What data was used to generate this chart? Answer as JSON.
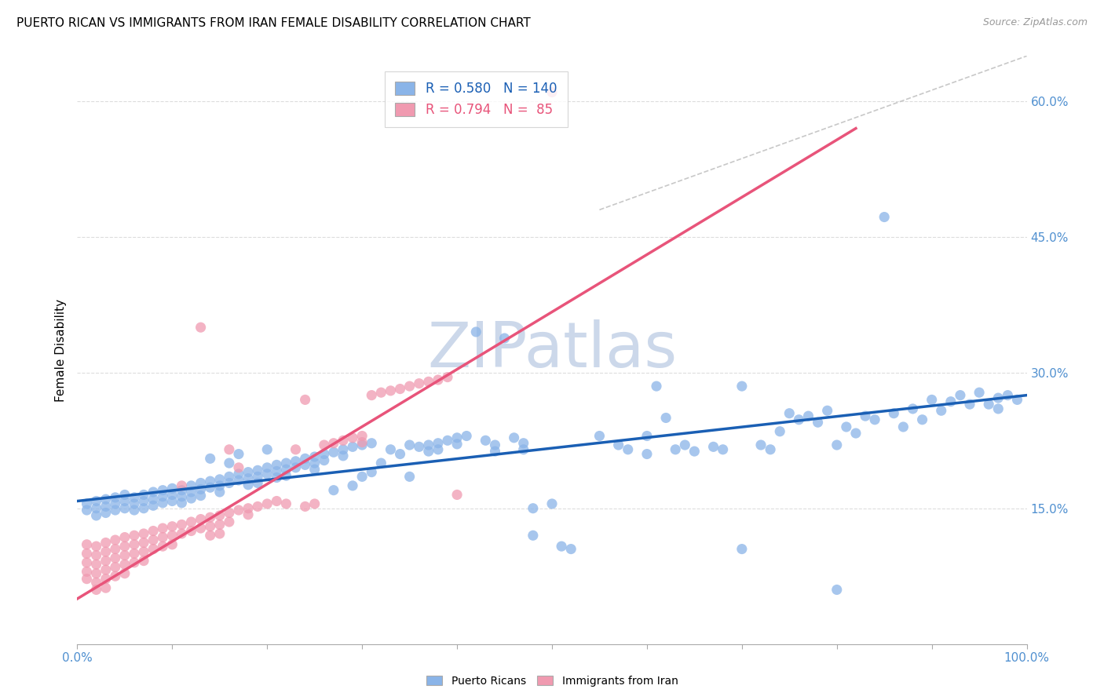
{
  "title": "PUERTO RICAN VS IMMIGRANTS FROM IRAN FEMALE DISABILITY CORRELATION CHART",
  "source": "Source: ZipAtlas.com",
  "ylabel": "Female Disability",
  "xlim": [
    0,
    1
  ],
  "ylim": [
    0,
    0.65
  ],
  "xticklabels": [
    "0.0%",
    "",
    "",
    "",
    "",
    "",
    "",
    "",
    "",
    "",
    "100.0%"
  ],
  "yticks": [
    0.15,
    0.3,
    0.45,
    0.6
  ],
  "yticklabels": [
    "15.0%",
    "30.0%",
    "45.0%",
    "60.0%"
  ],
  "blue_R": "0.580",
  "blue_N": "140",
  "pink_R": "0.794",
  "pink_N": "85",
  "blue_color": "#8ab4e8",
  "pink_color": "#f09ab0",
  "blue_line_color": "#1a5fb4",
  "pink_line_color": "#e8547a",
  "trendline_color": "#c8c8c8",
  "background_color": "#ffffff",
  "grid_color": "#dddddd",
  "blue_trendline": [
    [
      0.0,
      0.158
    ],
    [
      1.0,
      0.275
    ]
  ],
  "pink_trendline": [
    [
      0.0,
      0.05
    ],
    [
      0.82,
      0.57
    ]
  ],
  "diagonal_trendline": [
    [
      0.55,
      0.48
    ],
    [
      1.0,
      0.65
    ]
  ],
  "watermark": "ZIPatlas",
  "watermark_color": "#ccd8ea",
  "title_fontsize": 11,
  "legend_fontsize": 12,
  "tick_fontsize": 11,
  "ylabel_fontsize": 11,
  "blue_scatter": [
    [
      0.01,
      0.155
    ],
    [
      0.01,
      0.148
    ],
    [
      0.02,
      0.158
    ],
    [
      0.02,
      0.15
    ],
    [
      0.02,
      0.142
    ],
    [
      0.03,
      0.16
    ],
    [
      0.03,
      0.152
    ],
    [
      0.03,
      0.145
    ],
    [
      0.04,
      0.162
    ],
    [
      0.04,
      0.155
    ],
    [
      0.04,
      0.148
    ],
    [
      0.05,
      0.165
    ],
    [
      0.05,
      0.158
    ],
    [
      0.05,
      0.15
    ],
    [
      0.06,
      0.162
    ],
    [
      0.06,
      0.155
    ],
    [
      0.06,
      0.148
    ],
    [
      0.07,
      0.165
    ],
    [
      0.07,
      0.158
    ],
    [
      0.07,
      0.15
    ],
    [
      0.08,
      0.168
    ],
    [
      0.08,
      0.16
    ],
    [
      0.08,
      0.153
    ],
    [
      0.09,
      0.17
    ],
    [
      0.09,
      0.163
    ],
    [
      0.09,
      0.156
    ],
    [
      0.1,
      0.172
    ],
    [
      0.1,
      0.165
    ],
    [
      0.1,
      0.158
    ],
    [
      0.11,
      0.17
    ],
    [
      0.11,
      0.163
    ],
    [
      0.11,
      0.156
    ],
    [
      0.12,
      0.175
    ],
    [
      0.12,
      0.168
    ],
    [
      0.12,
      0.161
    ],
    [
      0.13,
      0.178
    ],
    [
      0.13,
      0.171
    ],
    [
      0.13,
      0.164
    ],
    [
      0.14,
      0.18
    ],
    [
      0.14,
      0.173
    ],
    [
      0.14,
      0.205
    ],
    [
      0.15,
      0.182
    ],
    [
      0.15,
      0.175
    ],
    [
      0.15,
      0.168
    ],
    [
      0.16,
      0.185
    ],
    [
      0.16,
      0.178
    ],
    [
      0.16,
      0.2
    ],
    [
      0.17,
      0.188
    ],
    [
      0.17,
      0.181
    ],
    [
      0.17,
      0.21
    ],
    [
      0.18,
      0.19
    ],
    [
      0.18,
      0.183
    ],
    [
      0.18,
      0.176
    ],
    [
      0.19,
      0.192
    ],
    [
      0.19,
      0.185
    ],
    [
      0.19,
      0.178
    ],
    [
      0.2,
      0.195
    ],
    [
      0.2,
      0.188
    ],
    [
      0.2,
      0.215
    ],
    [
      0.21,
      0.198
    ],
    [
      0.21,
      0.191
    ],
    [
      0.21,
      0.184
    ],
    [
      0.22,
      0.2
    ],
    [
      0.22,
      0.193
    ],
    [
      0.22,
      0.186
    ],
    [
      0.23,
      0.202
    ],
    [
      0.23,
      0.195
    ],
    [
      0.24,
      0.205
    ],
    [
      0.24,
      0.198
    ],
    [
      0.25,
      0.207
    ],
    [
      0.25,
      0.2
    ],
    [
      0.25,
      0.193
    ],
    [
      0.26,
      0.21
    ],
    [
      0.26,
      0.203
    ],
    [
      0.27,
      0.212
    ],
    [
      0.27,
      0.17
    ],
    [
      0.28,
      0.215
    ],
    [
      0.28,
      0.208
    ],
    [
      0.29,
      0.218
    ],
    [
      0.29,
      0.175
    ],
    [
      0.3,
      0.22
    ],
    [
      0.3,
      0.185
    ],
    [
      0.31,
      0.222
    ],
    [
      0.31,
      0.19
    ],
    [
      0.32,
      0.2
    ],
    [
      0.33,
      0.215
    ],
    [
      0.34,
      0.21
    ],
    [
      0.35,
      0.185
    ],
    [
      0.35,
      0.22
    ],
    [
      0.36,
      0.218
    ],
    [
      0.37,
      0.22
    ],
    [
      0.37,
      0.213
    ],
    [
      0.38,
      0.222
    ],
    [
      0.38,
      0.215
    ],
    [
      0.39,
      0.225
    ],
    [
      0.4,
      0.228
    ],
    [
      0.4,
      0.221
    ],
    [
      0.41,
      0.23
    ],
    [
      0.42,
      0.345
    ],
    [
      0.43,
      0.225
    ],
    [
      0.44,
      0.22
    ],
    [
      0.44,
      0.213
    ],
    [
      0.45,
      0.338
    ],
    [
      0.46,
      0.228
    ],
    [
      0.47,
      0.222
    ],
    [
      0.47,
      0.215
    ],
    [
      0.48,
      0.15
    ],
    [
      0.48,
      0.12
    ],
    [
      0.5,
      0.155
    ],
    [
      0.51,
      0.108
    ],
    [
      0.52,
      0.105
    ],
    [
      0.55,
      0.23
    ],
    [
      0.57,
      0.22
    ],
    [
      0.58,
      0.215
    ],
    [
      0.6,
      0.23
    ],
    [
      0.6,
      0.21
    ],
    [
      0.61,
      0.285
    ],
    [
      0.62,
      0.25
    ],
    [
      0.63,
      0.215
    ],
    [
      0.64,
      0.22
    ],
    [
      0.65,
      0.213
    ],
    [
      0.67,
      0.218
    ],
    [
      0.68,
      0.215
    ],
    [
      0.7,
      0.285
    ],
    [
      0.7,
      0.105
    ],
    [
      0.72,
      0.22
    ],
    [
      0.73,
      0.215
    ],
    [
      0.74,
      0.235
    ],
    [
      0.75,
      0.255
    ],
    [
      0.76,
      0.248
    ],
    [
      0.77,
      0.252
    ],
    [
      0.78,
      0.245
    ],
    [
      0.79,
      0.258
    ],
    [
      0.8,
      0.22
    ],
    [
      0.8,
      0.06
    ],
    [
      0.81,
      0.24
    ],
    [
      0.82,
      0.233
    ],
    [
      0.83,
      0.252
    ],
    [
      0.84,
      0.248
    ],
    [
      0.85,
      0.472
    ],
    [
      0.86,
      0.255
    ],
    [
      0.87,
      0.24
    ],
    [
      0.88,
      0.26
    ],
    [
      0.89,
      0.248
    ],
    [
      0.9,
      0.27
    ],
    [
      0.91,
      0.258
    ],
    [
      0.92,
      0.268
    ],
    [
      0.93,
      0.275
    ],
    [
      0.94,
      0.265
    ],
    [
      0.95,
      0.278
    ],
    [
      0.96,
      0.265
    ],
    [
      0.97,
      0.272
    ],
    [
      0.97,
      0.26
    ],
    [
      0.98,
      0.275
    ],
    [
      0.99,
      0.27
    ]
  ],
  "pink_scatter": [
    [
      0.01,
      0.11
    ],
    [
      0.01,
      0.1
    ],
    [
      0.01,
      0.09
    ],
    [
      0.01,
      0.08
    ],
    [
      0.01,
      0.072
    ],
    [
      0.02,
      0.108
    ],
    [
      0.02,
      0.098
    ],
    [
      0.02,
      0.088
    ],
    [
      0.02,
      0.078
    ],
    [
      0.02,
      0.068
    ],
    [
      0.02,
      0.06
    ],
    [
      0.03,
      0.112
    ],
    [
      0.03,
      0.102
    ],
    [
      0.03,
      0.092
    ],
    [
      0.03,
      0.082
    ],
    [
      0.03,
      0.072
    ],
    [
      0.03,
      0.062
    ],
    [
      0.04,
      0.115
    ],
    [
      0.04,
      0.105
    ],
    [
      0.04,
      0.095
    ],
    [
      0.04,
      0.085
    ],
    [
      0.04,
      0.075
    ],
    [
      0.05,
      0.118
    ],
    [
      0.05,
      0.108
    ],
    [
      0.05,
      0.098
    ],
    [
      0.05,
      0.088
    ],
    [
      0.05,
      0.078
    ],
    [
      0.06,
      0.12
    ],
    [
      0.06,
      0.11
    ],
    [
      0.06,
      0.1
    ],
    [
      0.06,
      0.09
    ],
    [
      0.07,
      0.122
    ],
    [
      0.07,
      0.112
    ],
    [
      0.07,
      0.102
    ],
    [
      0.07,
      0.092
    ],
    [
      0.08,
      0.125
    ],
    [
      0.08,
      0.115
    ],
    [
      0.08,
      0.105
    ],
    [
      0.09,
      0.128
    ],
    [
      0.09,
      0.118
    ],
    [
      0.09,
      0.108
    ],
    [
      0.1,
      0.13
    ],
    [
      0.1,
      0.12
    ],
    [
      0.1,
      0.11
    ],
    [
      0.11,
      0.132
    ],
    [
      0.11,
      0.122
    ],
    [
      0.11,
      0.175
    ],
    [
      0.12,
      0.135
    ],
    [
      0.12,
      0.125
    ],
    [
      0.13,
      0.138
    ],
    [
      0.13,
      0.128
    ],
    [
      0.13,
      0.35
    ],
    [
      0.14,
      0.14
    ],
    [
      0.14,
      0.13
    ],
    [
      0.14,
      0.12
    ],
    [
      0.15,
      0.142
    ],
    [
      0.15,
      0.132
    ],
    [
      0.15,
      0.122
    ],
    [
      0.16,
      0.145
    ],
    [
      0.16,
      0.135
    ],
    [
      0.16,
      0.215
    ],
    [
      0.17,
      0.148
    ],
    [
      0.17,
      0.195
    ],
    [
      0.18,
      0.15
    ],
    [
      0.18,
      0.143
    ],
    [
      0.19,
      0.152
    ],
    [
      0.2,
      0.155
    ],
    [
      0.21,
      0.158
    ],
    [
      0.22,
      0.155
    ],
    [
      0.23,
      0.215
    ],
    [
      0.24,
      0.152
    ],
    [
      0.24,
      0.27
    ],
    [
      0.25,
      0.155
    ],
    [
      0.26,
      0.22
    ],
    [
      0.27,
      0.222
    ],
    [
      0.28,
      0.225
    ],
    [
      0.29,
      0.228
    ],
    [
      0.3,
      0.23
    ],
    [
      0.3,
      0.223
    ],
    [
      0.31,
      0.275
    ],
    [
      0.32,
      0.278
    ],
    [
      0.33,
      0.28
    ],
    [
      0.34,
      0.282
    ],
    [
      0.35,
      0.285
    ],
    [
      0.36,
      0.288
    ],
    [
      0.37,
      0.29
    ],
    [
      0.38,
      0.292
    ],
    [
      0.39,
      0.295
    ],
    [
      0.4,
      0.165
    ],
    [
      0.5,
      0.61
    ]
  ]
}
